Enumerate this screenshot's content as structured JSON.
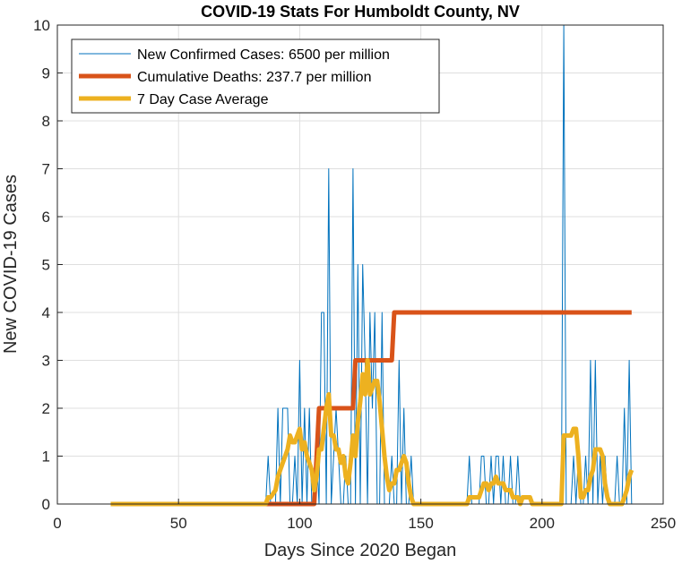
{
  "chart_data": {
    "type": "line",
    "title": "COVID-19 Stats For Humboldt County, NV",
    "xlabel": "Days Since 2020 Began",
    "ylabel": "New COVID-19 Cases",
    "xlim": [
      0,
      250
    ],
    "ylim": [
      0,
      10
    ],
    "xticks": [
      0,
      50,
      100,
      150,
      200,
      250
    ],
    "yticks": [
      0,
      1,
      2,
      3,
      4,
      5,
      6,
      7,
      8,
      9,
      10
    ],
    "grid": true,
    "legend_position": "top-left",
    "series": [
      {
        "name": "New Confirmed Cases: 6500 per million",
        "color": "#0072BD",
        "width": 1,
        "points": [
          [
            22,
            0
          ],
          [
            86,
            0
          ],
          [
            87,
            1
          ],
          [
            88,
            0
          ],
          [
            90,
            0
          ],
          [
            91,
            2
          ],
          [
            92,
            0
          ],
          [
            93,
            2
          ],
          [
            94,
            2
          ],
          [
            95,
            2
          ],
          [
            96,
            0
          ],
          [
            97,
            0
          ],
          [
            98,
            1
          ],
          [
            99,
            0
          ],
          [
            100,
            3
          ],
          [
            101,
            0
          ],
          [
            102,
            2
          ],
          [
            103,
            0
          ],
          [
            104,
            2
          ],
          [
            105,
            0
          ],
          [
            106,
            0
          ],
          [
            107,
            1
          ],
          [
            108,
            0
          ],
          [
            109,
            4
          ],
          [
            110,
            4
          ],
          [
            111,
            0
          ],
          [
            112,
            7
          ],
          [
            113,
            0
          ],
          [
            114,
            1
          ],
          [
            115,
            2
          ],
          [
            116,
            1
          ],
          [
            117,
            0
          ],
          [
            118,
            0
          ],
          [
            119,
            1
          ],
          [
            120,
            0
          ],
          [
            121,
            0
          ],
          [
            122,
            7
          ],
          [
            123,
            0
          ],
          [
            124,
            5
          ],
          [
            125,
            0
          ],
          [
            126,
            5
          ],
          [
            127,
            3
          ],
          [
            128,
            0
          ],
          [
            129,
            4
          ],
          [
            130,
            2
          ],
          [
            131,
            4
          ],
          [
            132,
            0
          ],
          [
            133,
            0
          ],
          [
            134,
            4
          ],
          [
            135,
            0
          ],
          [
            136,
            0
          ],
          [
            137,
            0
          ],
          [
            138,
            1
          ],
          [
            139,
            0
          ],
          [
            140,
            0
          ],
          [
            141,
            3
          ],
          [
            142,
            0
          ],
          [
            143,
            2
          ],
          [
            144,
            0
          ],
          [
            145,
            0
          ],
          [
            146,
            1
          ],
          [
            147,
            0
          ],
          [
            169,
            0
          ],
          [
            170,
            1
          ],
          [
            171,
            0
          ],
          [
            174,
            0
          ],
          [
            175,
            1
          ],
          [
            176,
            1
          ],
          [
            177,
            0
          ],
          [
            178,
            0
          ],
          [
            179,
            1
          ],
          [
            180,
            0
          ],
          [
            181,
            1
          ],
          [
            182,
            1
          ],
          [
            183,
            0
          ],
          [
            184,
            1
          ],
          [
            185,
            0
          ],
          [
            186,
            0
          ],
          [
            187,
            1
          ],
          [
            188,
            0
          ],
          [
            189,
            0
          ],
          [
            190,
            1
          ],
          [
            191,
            0
          ],
          [
            208,
            0
          ],
          [
            209,
            10
          ],
          [
            210,
            0
          ],
          [
            212,
            0
          ],
          [
            213,
            1
          ],
          [
            214,
            0
          ],
          [
            215,
            1
          ],
          [
            216,
            0
          ],
          [
            217,
            0
          ],
          [
            218,
            1
          ],
          [
            219,
            0
          ],
          [
            220,
            3
          ],
          [
            221,
            0
          ],
          [
            222,
            3
          ],
          [
            223,
            0
          ],
          [
            224,
            1
          ],
          [
            225,
            0
          ],
          [
            226,
            1
          ],
          [
            227,
            0
          ],
          [
            230,
            0
          ],
          [
            231,
            1
          ],
          [
            232,
            0
          ],
          [
            233,
            0
          ],
          [
            234,
            2
          ],
          [
            235,
            0
          ],
          [
            236,
            3
          ],
          [
            237,
            0
          ]
        ]
      },
      {
        "name": "Cumulative Deaths: 237.7 per million",
        "color": "#D95319",
        "width": 5,
        "points": [
          [
            22,
            0
          ],
          [
            106,
            0
          ],
          [
            107,
            1
          ],
          [
            108,
            2
          ],
          [
            122,
            2
          ],
          [
            123,
            3
          ],
          [
            138,
            3
          ],
          [
            139,
            4
          ],
          [
            237,
            4
          ]
        ]
      },
      {
        "name": "7 Day Case Average",
        "color": "#EDB120",
        "width": 5,
        "points": [
          [
            22,
            0
          ],
          [
            86,
            0
          ],
          [
            87,
            0.14
          ],
          [
            88,
            0.14
          ],
          [
            90,
            0.29
          ],
          [
            91,
            0.57
          ],
          [
            93,
            0.86
          ],
          [
            95,
            1.14
          ],
          [
            96,
            1.43
          ],
          [
            97,
            1.29
          ],
          [
            98,
            1.29
          ],
          [
            100,
            1.57
          ],
          [
            101,
            1.14
          ],
          [
            102,
            1.29
          ],
          [
            103,
            1.0
          ],
          [
            104,
            0.86
          ],
          [
            105,
            0.71
          ],
          [
            106,
            0.29
          ],
          [
            107,
            0.57
          ],
          [
            108,
            1.14
          ],
          [
            109,
            1.14
          ],
          [
            110,
            1.57
          ],
          [
            111,
            2.0
          ],
          [
            112,
            2.29
          ],
          [
            113,
            1.43
          ],
          [
            114,
            1.43
          ],
          [
            115,
            1.14
          ],
          [
            116,
            1.14
          ],
          [
            117,
            0.86
          ],
          [
            118,
            1.0
          ],
          [
            119,
            0.57
          ],
          [
            120,
            0.43
          ],
          [
            121,
            0.86
          ],
          [
            122,
            1.43
          ],
          [
            123,
            1.0
          ],
          [
            124,
            1.71
          ],
          [
            125,
            2.14
          ],
          [
            126,
            2.71
          ],
          [
            127,
            2.29
          ],
          [
            128,
            3.0
          ],
          [
            129,
            2.29
          ],
          [
            130,
            2.43
          ],
          [
            131,
            2.57
          ],
          [
            132,
            2.57
          ],
          [
            133,
            2.14
          ],
          [
            134,
            1.57
          ],
          [
            135,
            1.0
          ],
          [
            136,
            0.57
          ],
          [
            137,
            0.29
          ],
          [
            138,
            0.43
          ],
          [
            139,
            0.43
          ],
          [
            140,
            0.71
          ],
          [
            141,
            0.71
          ],
          [
            142,
            0.86
          ],
          [
            143,
            1.0
          ],
          [
            144,
            0.86
          ],
          [
            145,
            0.43
          ],
          [
            146,
            0.14
          ],
          [
            147,
            0.0
          ],
          [
            148,
            0.0
          ],
          [
            169,
            0
          ],
          [
            170,
            0.14
          ],
          [
            171,
            0.14
          ],
          [
            174,
            0.14
          ],
          [
            175,
            0.29
          ],
          [
            176,
            0.43
          ],
          [
            177,
            0.43
          ],
          [
            178,
            0.29
          ],
          [
            179,
            0.43
          ],
          [
            180,
            0.43
          ],
          [
            181,
            0.57
          ],
          [
            182,
            0.43
          ],
          [
            183,
            0.43
          ],
          [
            184,
            0.43
          ],
          [
            185,
            0.29
          ],
          [
            186,
            0.29
          ],
          [
            187,
            0.29
          ],
          [
            188,
            0.14
          ],
          [
            189,
            0.14
          ],
          [
            190,
            0.14
          ],
          [
            191,
            0.0
          ],
          [
            192,
            0.14
          ],
          [
            193,
            0.14
          ],
          [
            195,
            0.14
          ],
          [
            196,
            0
          ],
          [
            208,
            0
          ],
          [
            209,
            1.43
          ],
          [
            210,
            1.43
          ],
          [
            211,
            1.43
          ],
          [
            212,
            1.43
          ],
          [
            213,
            1.57
          ],
          [
            214,
            1.57
          ],
          [
            215,
            1.0
          ],
          [
            216,
            0.14
          ],
          [
            217,
            0.14
          ],
          [
            218,
            0.29
          ],
          [
            219,
            0.29
          ],
          [
            220,
            0.57
          ],
          [
            221,
            0.71
          ],
          [
            222,
            1.14
          ],
          [
            223,
            1.14
          ],
          [
            224,
            1.14
          ],
          [
            225,
            1.0
          ],
          [
            226,
            0.43
          ],
          [
            227,
            0.14
          ],
          [
            228,
            0.0
          ],
          [
            233,
            0.0
          ],
          [
            234,
            0.14
          ],
          [
            235,
            0.29
          ],
          [
            236,
            0.57
          ],
          [
            237,
            0.71
          ]
        ]
      }
    ]
  }
}
